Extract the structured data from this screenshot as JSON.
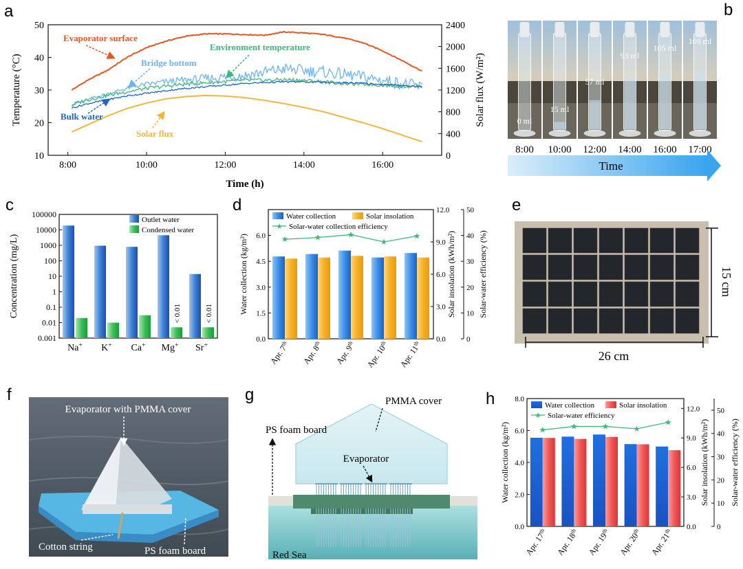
{
  "panels": {
    "a": "a",
    "b": "b",
    "c": "c",
    "d": "d",
    "e": "e",
    "f": "f",
    "g": "g",
    "h": "h"
  },
  "colors": {
    "evaporator_surface": "#e8561f",
    "bridge_bottom": "#6cb4f0",
    "environment": "#3cb878",
    "bulk_water": "#1f63c4",
    "solar_flux": "#f2b63a",
    "blue_bar": "#2f7fe0",
    "orange_bar": "#f7b226",
    "green_bar": "#3cbf5a",
    "red_bar": "#f05858",
    "efficiency": "#3cb878"
  },
  "panel_b": {
    "volumes": [
      "0 ml",
      "15 ml",
      "57 ml",
      "93 ml",
      "105 ml",
      "109 ml"
    ],
    "times": [
      "8:00",
      "10:00",
      "12:00",
      "14:00",
      "16:00",
      "17:00"
    ],
    "arrow_label": "Time"
  },
  "panel_e": {
    "height_label": "15 cm",
    "width_label": "26 cm"
  },
  "panel_f": {
    "evaporator_label": "Evaporator with PMMA cover",
    "cotton_label": "Cotton string",
    "foam_label": "PS foam board"
  },
  "panel_g": {
    "cover_label": "PMMA cover",
    "foam_label": "PS foam board",
    "evaporator_label": "Evaporator",
    "sea_label": "Red Sea"
  },
  "chart_data": [
    {
      "panel": "a",
      "type": "line",
      "xlabel": "Time (h)",
      "ylabel": "Temperature (°C)",
      "y2label": "Solar flux (W/m²)",
      "xlim": [
        7.5,
        17.5
      ],
      "ylim": [
        10,
        50
      ],
      "y2lim": [
        0,
        2400
      ],
      "xticks": [
        8,
        10,
        12,
        14,
        16
      ],
      "xtick_labels": [
        "8:00",
        "10:00",
        "12:00",
        "14:00",
        "16:00"
      ],
      "yticks": [
        10,
        20,
        30,
        40,
        50
      ],
      "y2ticks": [
        0,
        400,
        800,
        1200,
        1600,
        2000,
        2400
      ],
      "grid": false,
      "series": [
        {
          "name": "Evaporator surface",
          "axis": "left",
          "x": [
            8.1,
            8.5,
            9,
            9.5,
            10,
            10.5,
            11,
            11.5,
            12,
            12.5,
            13,
            13.5,
            14,
            14.5,
            15,
            15.5,
            16,
            16.5,
            17
          ],
          "y": [
            30,
            33,
            36,
            40,
            43,
            45,
            46.5,
            47.2,
            47.2,
            47,
            46.8,
            47.8,
            47.5,
            47,
            46,
            44.5,
            42,
            39,
            35.8
          ]
        },
        {
          "name": "Bridge bottom",
          "axis": "left",
          "x": [
            8.1,
            8.5,
            9,
            9.5,
            10,
            10.5,
            11,
            11.5,
            12,
            12.5,
            13,
            13.5,
            14,
            14.5,
            15,
            15.5,
            16,
            16.5,
            17
          ],
          "y": [
            25.5,
            27,
            28.8,
            30.5,
            31.8,
            32.5,
            33,
            33.5,
            34,
            34.5,
            35.5,
            36.5,
            36,
            35.5,
            34.8,
            34,
            33,
            32,
            31
          ]
        },
        {
          "name": "Environment temperature",
          "axis": "left",
          "x": [
            8.1,
            8.5,
            9,
            9.5,
            10,
            10.5,
            11,
            11.5,
            12,
            12.5,
            13,
            13.5,
            14,
            14.5,
            15,
            15.5,
            16,
            16.5,
            17
          ],
          "y": [
            25.5,
            27,
            28.3,
            29.5,
            30.5,
            31.2,
            31.8,
            32.2,
            32.6,
            33,
            33,
            33.2,
            33,
            32.5,
            32,
            31.8,
            31.5,
            31.2,
            31
          ]
        },
        {
          "name": "Bulk water",
          "axis": "left",
          "x": [
            8.1,
            8.5,
            9,
            9.5,
            10,
            10.5,
            11,
            11.5,
            12,
            12.5,
            13,
            13.5,
            14,
            14.5,
            15,
            15.5,
            16,
            16.5,
            17
          ],
          "y": [
            24.5,
            25.8,
            27,
            28.2,
            29,
            29.8,
            30.5,
            31,
            31.5,
            32,
            32.3,
            32.5,
            32.5,
            32.4,
            32.2,
            32,
            31.7,
            31.4,
            31
          ]
        },
        {
          "name": "Solar flux",
          "axis": "right",
          "x": [
            8.1,
            8.5,
            9,
            9.5,
            10,
            10.5,
            11,
            11.5,
            12,
            12.5,
            13,
            13.5,
            14,
            14.5,
            15,
            15.5,
            16,
            16.5,
            17
          ],
          "y": [
            430,
            560,
            720,
            860,
            960,
            1040,
            1080,
            1100,
            1090,
            1060,
            1010,
            950,
            880,
            800,
            700,
            600,
            490,
            370,
            250
          ]
        }
      ],
      "annotations": [
        "Evaporator surface",
        "Bridge bottom",
        "Environment temperature",
        "Bulk water",
        "Solar flux"
      ]
    },
    {
      "panel": "c",
      "type": "bar",
      "ylabel": "Concentration (mg/L)",
      "yscale": "log",
      "ylim": [
        0.001,
        100000
      ],
      "ytick_labels": [
        "0.001",
        "0.01",
        "0.1",
        "1",
        "10",
        "100",
        "1000",
        "10000",
        "100000"
      ],
      "categories": [
        "Na⁺",
        "K⁺",
        "Ca⁺",
        "Mg⁺",
        "Sr⁺"
      ],
      "series": [
        {
          "name": "Outlet water",
          "values": [
            19000,
            950,
            800,
            4500,
            14
          ]
        },
        {
          "name": "Condensed water",
          "values": [
            0.02,
            0.01,
            0.03,
            0.005,
            0.005
          ]
        }
      ],
      "annotations": [
        "< 0.01",
        "< 0.01"
      ],
      "legend": "top-right"
    },
    {
      "panel": "d",
      "type": "bar",
      "ylabel": "Water collection (kg/m²)",
      "y2label": "Solar insolation (kWh/m²)",
      "y3label": "Solar-water efficiency (%)",
      "categories": [
        "Apr. 7th",
        "Apr. 8th",
        "Apr. 9th",
        "Apr. 10th",
        "Apr. 11th"
      ],
      "ylim": [
        0,
        7.5
      ],
      "y2lim": [
        0,
        12
      ],
      "y3lim": [
        0,
        50
      ],
      "yticks": [
        "0.0",
        "1.5",
        "3.0",
        "4.5",
        "6.0"
      ],
      "y2ticks": [
        "0.0",
        "3.0",
        "6.0",
        "9.0",
        "12.0"
      ],
      "y3ticks": [
        "0",
        "10",
        "20",
        "30",
        "40",
        "50"
      ],
      "series": [
        {
          "name": "Water collection",
          "axis": "left",
          "values": [
            4.78,
            4.92,
            5.12,
            4.72,
            4.98
          ]
        },
        {
          "name": "Solar insolation",
          "axis": "right",
          "values": [
            7.45,
            7.55,
            7.7,
            7.65,
            7.55
          ]
        },
        {
          "name": "Solar-water collection efficiency",
          "axis": "right2",
          "type": "line",
          "values": [
            38.5,
            39.2,
            40.3,
            37.5,
            39.8
          ]
        }
      ],
      "legend": "top"
    },
    {
      "panel": "h",
      "type": "bar",
      "ylabel": "Water collection (kg/m²)",
      "y2label": "Solar insolation (kWh/m²)",
      "y3label": "Solar-water efficiency (%)",
      "categories": [
        "Apr. 17th",
        "Apr. 18th",
        "Apr. 19th",
        "Apr. 20th",
        "Apr. 21th"
      ],
      "ylim": [
        0,
        8
      ],
      "y2lim": [
        0,
        13
      ],
      "y3lim": [
        0,
        55
      ],
      "yticks": [
        "0.0",
        "2.0",
        "4.0",
        "6.0",
        "8.0"
      ],
      "y2ticks": [
        "0.0",
        "3.0",
        "6.0",
        "9.0",
        "12.0"
      ],
      "y3ticks": [
        "0",
        "10",
        "20",
        "30",
        "40",
        "50"
      ],
      "series": [
        {
          "name": "Water collection",
          "axis": "left",
          "values": [
            5.55,
            5.62,
            5.75,
            5.15,
            5.0
          ]
        },
        {
          "name": "Solar insolation",
          "axis": "right",
          "values": [
            9.0,
            8.9,
            9.1,
            8.35,
            7.75
          ]
        },
        {
          "name": "Solar-water efficiency",
          "axis": "right2",
          "type": "line",
          "values": [
            41.5,
            43,
            43,
            42,
            44.8
          ]
        }
      ],
      "legend": "top"
    }
  ]
}
